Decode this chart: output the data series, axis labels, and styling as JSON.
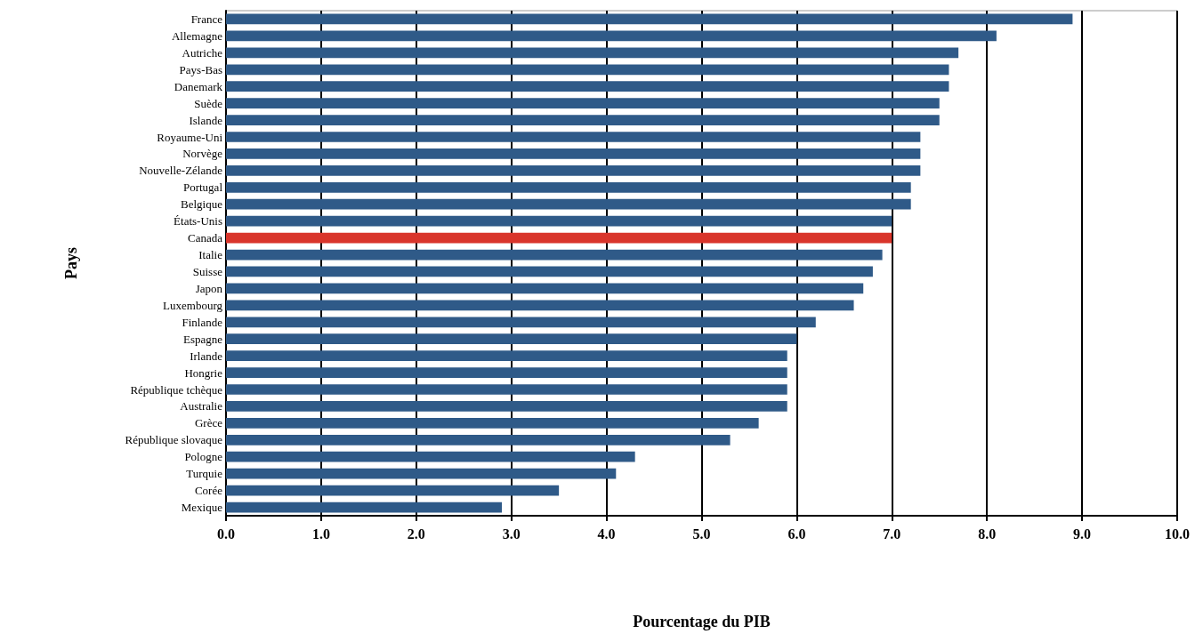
{
  "chart_data": {
    "type": "bar",
    "orientation": "horizontal",
    "xlabel": "Pourcentage du PIB",
    "ylabel": "Pays",
    "categories": [
      "France",
      "Allemagne",
      "Autriche",
      "Pays-Bas",
      "Danemark",
      "Suède",
      "Islande",
      "Royaume-Uni",
      "Norvège",
      "Nouvelle-Zélande",
      "Portugal",
      "Belgique",
      "États-Unis",
      "Canada",
      "Italie",
      "Suisse",
      "Japon",
      "Luxembourg",
      "Finlande",
      "Espagne",
      "Irlande",
      "Hongrie",
      "République tchèque",
      "Australie",
      "Grèce",
      "République slovaque",
      "Pologne",
      "Turquie",
      "Corée",
      "Mexique"
    ],
    "values": [
      8.9,
      8.1,
      7.7,
      7.6,
      7.6,
      7.5,
      7.5,
      7.3,
      7.3,
      7.3,
      7.2,
      7.2,
      7.0,
      7.0,
      6.9,
      6.8,
      6.7,
      6.6,
      6.2,
      6.0,
      5.9,
      5.9,
      5.9,
      5.9,
      5.6,
      5.3,
      4.3,
      4.1,
      3.5,
      2.9
    ],
    "colors": [
      "#2f5a88",
      "#2f5a88",
      "#2f5a88",
      "#2f5a88",
      "#2f5a88",
      "#2f5a88",
      "#2f5a88",
      "#2f5a88",
      "#2f5a88",
      "#2f5a88",
      "#2f5a88",
      "#2f5a88",
      "#2f5a88",
      "#d9352b",
      "#2f5a88",
      "#2f5a88",
      "#2f5a88",
      "#2f5a88",
      "#2f5a88",
      "#2f5a88",
      "#2f5a88",
      "#2f5a88",
      "#2f5a88",
      "#2f5a88",
      "#2f5a88",
      "#2f5a88",
      "#2f5a88",
      "#2f5a88",
      "#2f5a88",
      "#2f5a88"
    ],
    "xlim": [
      0,
      10
    ],
    "xticks": [
      {
        "value": 0,
        "label": "0.0"
      },
      {
        "value": 1,
        "label": "1.0"
      },
      {
        "value": 2,
        "label": "2.0"
      },
      {
        "value": 3,
        "label": "3.0"
      },
      {
        "value": 4,
        "label": "4.0"
      },
      {
        "value": 5,
        "label": "5.0"
      },
      {
        "value": 6,
        "label": "6.0"
      },
      {
        "value": 7,
        "label": "7.0"
      },
      {
        "value": 8,
        "label": "8.0"
      },
      {
        "value": 9,
        "label": "9.0"
      },
      {
        "value": 10,
        "label": "10.0"
      }
    ],
    "grid": "x"
  }
}
